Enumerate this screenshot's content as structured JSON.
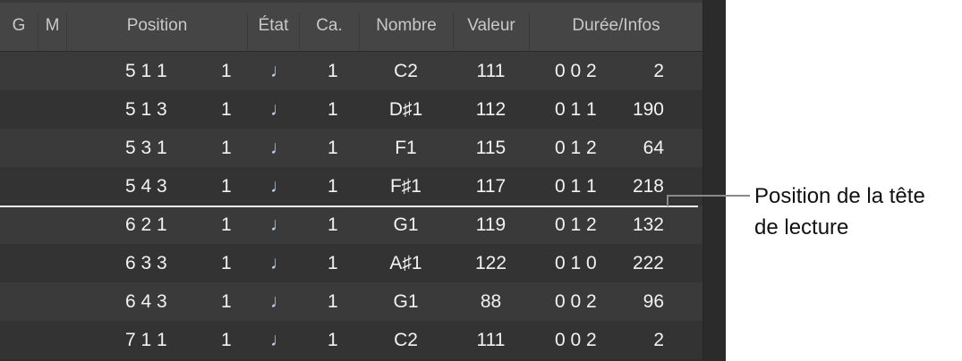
{
  "header": {
    "columns": [
      "G",
      "M",
      "Position",
      "État",
      "Ca.",
      "Nombre",
      "Valeur",
      "Durée/Infos"
    ]
  },
  "rows": [
    {
      "position": "5 1 1",
      "sub": "1",
      "status": "note-icon",
      "channel": "1",
      "number": "C2",
      "value": "111",
      "length": "0 0 2",
      "info": "2"
    },
    {
      "position": "5 1 3",
      "sub": "1",
      "status": "note-icon",
      "channel": "1",
      "number": "D♯1",
      "value": "112",
      "length": "0 1 1",
      "info": "190"
    },
    {
      "position": "5 3 1",
      "sub": "1",
      "status": "note-icon",
      "channel": "1",
      "number": "F1",
      "value": "115",
      "length": "0 1 2",
      "info": "64"
    },
    {
      "position": "5 4 3",
      "sub": "1",
      "status": "note-icon",
      "channel": "1",
      "number": "F♯1",
      "value": "117",
      "length": "0 1 1",
      "info": "218"
    },
    {
      "position": "6 2 1",
      "sub": "1",
      "status": "note-icon",
      "channel": "1",
      "number": "G1",
      "value": "119",
      "length": "0 1 2",
      "info": "132"
    },
    {
      "position": "6 3 3",
      "sub": "1",
      "status": "note-icon",
      "channel": "1",
      "number": "A♯1",
      "value": "122",
      "length": "0 1 0",
      "info": "222"
    },
    {
      "position": "6 4 3",
      "sub": "1",
      "status": "note-icon",
      "channel": "1",
      "number": "G1",
      "value": "88",
      "length": "0 0 2",
      "info": "96"
    },
    {
      "position": "7 1 1",
      "sub": "1",
      "status": "note-icon",
      "channel": "1",
      "number": "C2",
      "value": "111",
      "length": "0 0 2",
      "info": "2"
    }
  ],
  "note_glyph": "♩",
  "callout": {
    "line1": "Position de la tête",
    "line2": "de lecture"
  }
}
